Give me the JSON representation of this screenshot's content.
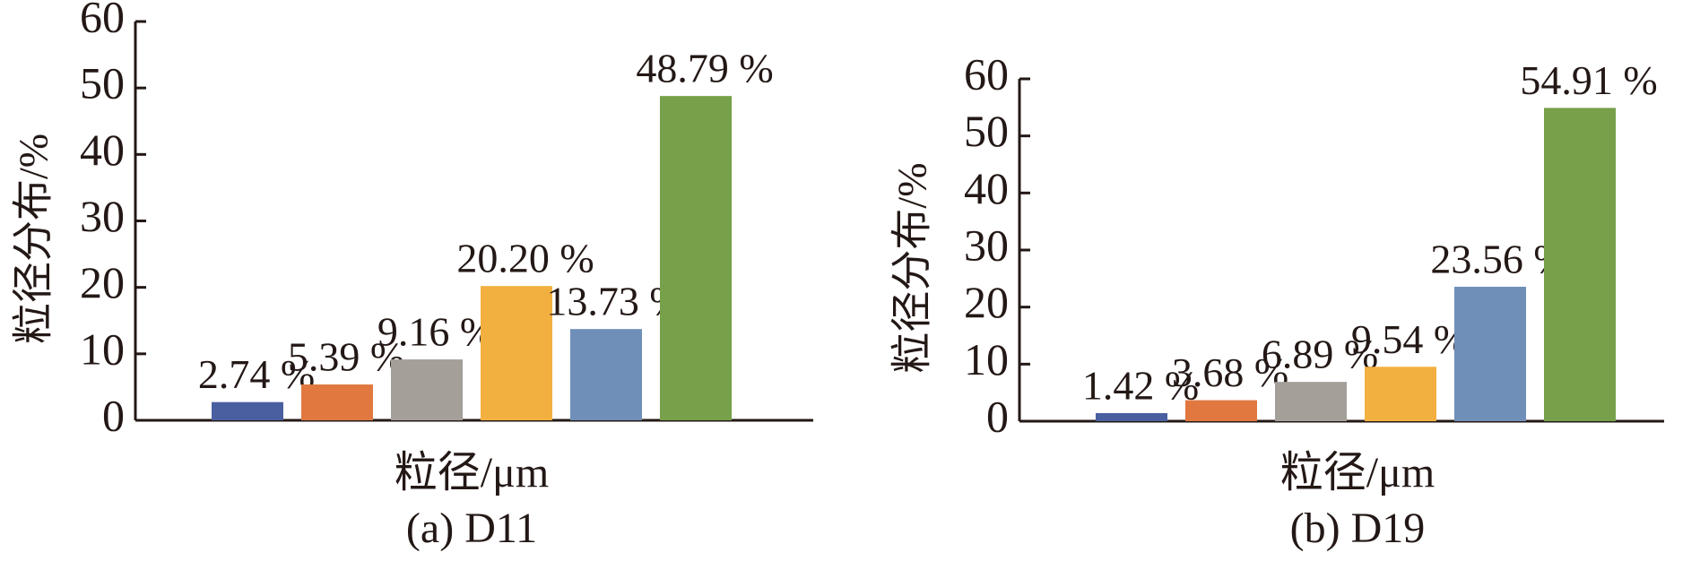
{
  "chart_data": [
    {
      "type": "bar",
      "caption": "(a) D11",
      "ylabel": "粒径分布/%",
      "xlabel": "粒径/μm",
      "categories": [
        null,
        null,
        null,
        null,
        null,
        null
      ],
      "values": [
        2.74,
        5.39,
        9.16,
        20.2,
        13.73,
        48.79
      ],
      "value_labels": [
        "2.74 %",
        "5.39 %",
        "9.16 %",
        "20.20 %",
        "13.73 %",
        "48.79 %"
      ],
      "colors": [
        "#4a5fa0",
        "#e07840",
        "#a59f9a",
        "#f2b040",
        "#6f8fb8",
        "#76a04a"
      ],
      "ylim": [
        0,
        60
      ],
      "yticks": [
        0,
        10,
        20,
        30,
        40,
        50,
        60
      ]
    },
    {
      "type": "bar",
      "caption": "(b) D19",
      "ylabel": "粒径分布/%",
      "xlabel": "粒径/μm",
      "categories": [
        null,
        null,
        null,
        null,
        null,
        null
      ],
      "values": [
        1.42,
        3.68,
        6.89,
        9.54,
        23.56,
        54.91
      ],
      "value_labels": [
        "1.42 %",
        "3.68 %",
        "6.89 %",
        "9.54 %",
        "23.56 %",
        "54.91 %"
      ],
      "colors": [
        "#4a5fa0",
        "#e07840",
        "#a59f9a",
        "#f2b040",
        "#6f8fb8",
        "#76a04a"
      ],
      "ylim": [
        0,
        60
      ],
      "yticks": [
        0,
        10,
        20,
        30,
        40,
        50,
        60
      ]
    }
  ]
}
